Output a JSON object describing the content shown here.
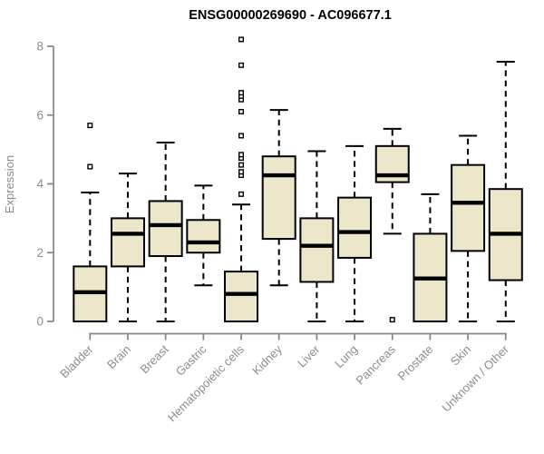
{
  "chart": {
    "title": "ENSG00000269690 - AC096677.1"
  },
  "chart_data": {
    "type": "box",
    "title": "ENSG00000269690 - AC096677.1",
    "xlabel": "",
    "ylabel": "Expression",
    "ylim": [
      0,
      8
    ],
    "yticks": [
      0,
      2,
      4,
      6,
      8
    ],
    "grid": false,
    "legend": "none",
    "categories": [
      "Bladder",
      "Brain",
      "Breast",
      "Gastric",
      "Hematopoietic cells",
      "Kidney",
      "Liver",
      "Lung",
      "Pancreas",
      "Prostate",
      "Skin",
      "Unknown / Other"
    ],
    "series": [
      {
        "category": "Bladder",
        "whisker_low": 0.0,
        "q1": 0.0,
        "median": 0.85,
        "q3": 1.6,
        "whisker_high": 3.75,
        "outliers": [
          4.5,
          5.7
        ]
      },
      {
        "category": "Brain",
        "whisker_low": 0.0,
        "q1": 1.6,
        "median": 2.55,
        "q3": 3.0,
        "whisker_high": 4.3,
        "outliers": []
      },
      {
        "category": "Breast",
        "whisker_low": 0.0,
        "q1": 1.9,
        "median": 2.8,
        "q3": 3.5,
        "whisker_high": 5.2,
        "outliers": []
      },
      {
        "category": "Gastric",
        "whisker_low": 1.05,
        "q1": 2.0,
        "median": 2.3,
        "q3": 2.95,
        "whisker_high": 3.95,
        "outliers": []
      },
      {
        "category": "Hematopoietic cells",
        "whisker_low": 0.0,
        "q1": 0.0,
        "median": 0.8,
        "q3": 1.45,
        "whisker_high": 3.4,
        "outliers": [
          3.7,
          4.25,
          4.35,
          4.55,
          4.75,
          4.85,
          5.4,
          6.1,
          6.45,
          6.55,
          6.65,
          7.45,
          8.2
        ]
      },
      {
        "category": "Kidney",
        "whisker_low": 1.05,
        "q1": 2.4,
        "median": 4.25,
        "q3": 4.8,
        "whisker_high": 6.15,
        "outliers": []
      },
      {
        "category": "Liver",
        "whisker_low": 0.0,
        "q1": 1.15,
        "median": 2.2,
        "q3": 3.0,
        "whisker_high": 4.95,
        "outliers": []
      },
      {
        "category": "Lung",
        "whisker_low": 0.0,
        "q1": 1.85,
        "median": 2.6,
        "q3": 3.6,
        "whisker_high": 5.1,
        "outliers": []
      },
      {
        "category": "Pancreas",
        "whisker_low": 2.55,
        "q1": 4.05,
        "median": 4.25,
        "q3": 5.1,
        "whisker_high": 5.6,
        "outliers": [
          0.05
        ]
      },
      {
        "category": "Prostate",
        "whisker_low": 0.0,
        "q1": 0.0,
        "median": 1.25,
        "q3": 2.55,
        "whisker_high": 3.7,
        "outliers": []
      },
      {
        "category": "Skin",
        "whisker_low": 0.0,
        "q1": 2.05,
        "median": 3.45,
        "q3": 4.55,
        "whisker_high": 5.4,
        "outliers": []
      },
      {
        "category": "Unknown / Other",
        "whisker_low": 0.0,
        "q1": 1.2,
        "median": 2.55,
        "q3": 3.85,
        "whisker_high": 7.55,
        "outliers": []
      }
    ]
  },
  "style": {
    "box_fill": "#ece7cb",
    "box_stroke": "#000000",
    "median_color": "#000000",
    "whisker_color": "#000000",
    "outlier_fill": "#ffffff",
    "outlier_stroke": "#000000",
    "axis_color": "#848484",
    "label_color": "#8c8c8c",
    "title_color": "#000000"
  }
}
